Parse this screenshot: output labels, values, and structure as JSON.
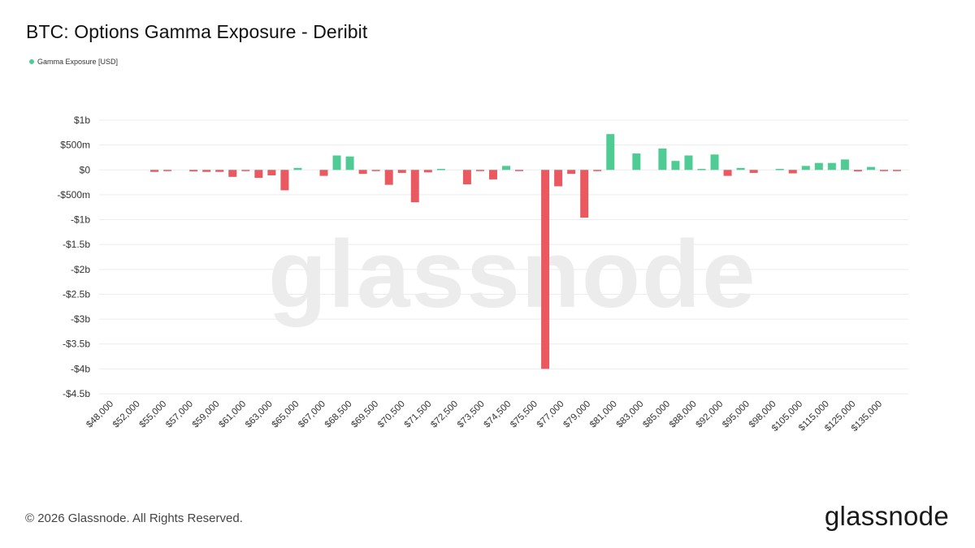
{
  "title": "BTC: Options Gamma Exposure - Deribit",
  "legend": {
    "label": "Gamma Exposure [USD]",
    "color": "#4fcb94"
  },
  "watermark": "glassnode",
  "footer": {
    "copyright": "© 2026 Glassnode. All Rights Reserved.",
    "logo": "glassnode"
  },
  "colors": {
    "positive": "#4fcb94",
    "negative": "#e9595f",
    "grid": "#ececec"
  },
  "chart_data": {
    "type": "bar",
    "title": "BTC: Options Gamma Exposure - Deribit",
    "series": [
      {
        "name": "Gamma Exposure [USD]"
      }
    ],
    "ylim": [
      -4.5,
      1
    ],
    "y_unit": "billion USD",
    "y_ticks": [
      1,
      0.5,
      0,
      -0.5,
      -1,
      -1.5,
      -2,
      -2.5,
      -3,
      -3.5,
      -4,
      -4.5
    ],
    "y_tick_labels": [
      "$1b",
      "$500m",
      "$0",
      "-$500m",
      "-$1b",
      "-$1.5b",
      "-$2b",
      "-$2.5b",
      "-$3b",
      "-$3.5b",
      "-$4b",
      "-$4.5b"
    ],
    "grid": true,
    "x_tick_labels": [
      "$48,000",
      "$52,000",
      "$55,000",
      "$57,000",
      "$59,000",
      "$61,000",
      "$63,000",
      "$65,000",
      "$67,000",
      "$68,500",
      "$69,500",
      "$70,500",
      "$71,500",
      "$72,500",
      "$73,500",
      "$74,500",
      "$75,500",
      "$77,000",
      "$79,000",
      "$81,000",
      "$83,000",
      "$85,000",
      "$88,000",
      "$92,000",
      "$95,000",
      "$98,000",
      "$105,000",
      "$115,000",
      "$125,000",
      "$135,000"
    ],
    "values": [
      0,
      0,
      -0.04,
      -0.02,
      0,
      -0.03,
      -0.04,
      -0.04,
      -0.14,
      -0.02,
      -0.16,
      -0.11,
      -0.41,
      0.04,
      0,
      -0.12,
      0.29,
      0.27,
      -0.08,
      -0.02,
      -0.3,
      -0.06,
      -0.65,
      -0.05,
      0.02,
      0,
      -0.29,
      -0.02,
      -0.19,
      0.08,
      -0.02,
      0,
      -4.0,
      -0.33,
      -0.08,
      -0.96,
      -0.02,
      0.72,
      0,
      0.33,
      0,
      0.43,
      0.18,
      0.29,
      0.02,
      0.31,
      -0.12,
      0.04,
      -0.06,
      0,
      0.02,
      -0.07,
      0.08,
      0.14,
      0.14,
      0.21,
      -0.03,
      0.06,
      -0.01,
      -0.01
    ]
  }
}
